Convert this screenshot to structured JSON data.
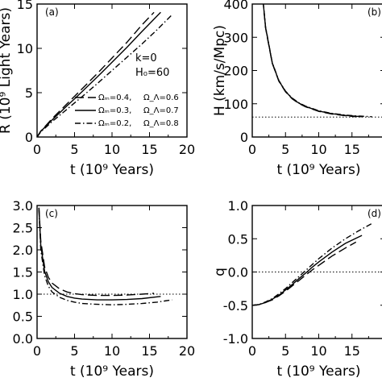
{
  "chart_data": [
    {
      "panel_label": "(a)",
      "type": "line",
      "ylabel": "R (10⁹ Light Years)",
      "xlabel": "t (10⁹ Years)",
      "xlim": [
        0,
        20
      ],
      "ylim": [
        0,
        16
      ],
      "xticks": [
        "0",
        "5",
        "10",
        "15",
        "20"
      ],
      "yticks": [
        "0",
        "5",
        "10",
        "15"
      ],
      "annotations": [
        "k=0",
        "H₀=60"
      ],
      "series": [
        {
          "name": "Ωₘ=0.4, Ω_Λ=0.6",
          "style": "long-dash",
          "x": [
            0,
            0.5,
            1,
            2,
            3,
            4,
            5,
            6,
            8,
            10,
            12,
            14,
            15.6
          ],
          "y": [
            0,
            0.72,
            1.2,
            2.2,
            3.1,
            4.0,
            4.9,
            5.8,
            7.6,
            9.5,
            11.4,
            13.5,
            15.0
          ]
        },
        {
          "name": "Ωₘ=0.3, Ω_Λ=0.7",
          "style": "solid",
          "x": [
            0,
            0.5,
            1,
            2,
            3,
            4,
            5,
            6,
            8,
            10,
            12,
            14,
            16.5
          ],
          "y": [
            0,
            0.68,
            1.13,
            2.05,
            2.9,
            3.75,
            4.6,
            5.45,
            7.2,
            9.0,
            10.8,
            12.7,
            15.0
          ]
        },
        {
          "name": "Ωₘ=0.2, Ω_Λ=0.8",
          "style": "dash-dot",
          "x": [
            0,
            0.5,
            1,
            2,
            3,
            4,
            5,
            6,
            8,
            10,
            12,
            14,
            16,
            18
          ],
          "y": [
            0,
            0.62,
            1.02,
            1.85,
            2.6,
            3.35,
            4.1,
            4.85,
            6.4,
            8.0,
            9.6,
            11.2,
            12.9,
            14.7
          ]
        }
      ]
    },
    {
      "panel_label": "(b)",
      "type": "line",
      "ylabel": "H (km/s/Mpc)",
      "xlabel": "t (10⁹ Years)",
      "xlim": [
        0,
        20
      ],
      "ylim": [
        0,
        400
      ],
      "xticks": [
        "0",
        "5",
        "10",
        "15",
        "2"
      ],
      "yticks": [
        "0",
        "100",
        "200",
        "300",
        "400"
      ],
      "reference_line": 60,
      "series": [
        {
          "name": "Ωₘ=0.4, Ω_Λ=0.6",
          "style": "long-dash",
          "x": [
            1.6,
            2,
            3,
            4,
            5,
            6,
            7,
            8,
            10,
            12,
            14,
            15.6
          ],
          "y": [
            415,
            328,
            222,
            168,
            136,
            115,
            101,
            91,
            77,
            69,
            64,
            61
          ]
        },
        {
          "name": "Ωₘ=0.3, Ω_Λ=0.7",
          "style": "solid",
          "x": [
            1.6,
            2,
            3,
            4,
            5,
            6,
            7,
            8,
            10,
            12,
            14,
            16.5
          ],
          "y": [
            415,
            330,
            223,
            169,
            137,
            116,
            102,
            92,
            78,
            70,
            65,
            61
          ]
        },
        {
          "name": "Ωₘ=0.2, Ω_Λ=0.8",
          "style": "dash-dot",
          "x": [
            1.6,
            2,
            3,
            4,
            5,
            6,
            7,
            8,
            10,
            12,
            14,
            16,
            18
          ],
          "y": [
            415,
            332,
            224,
            170,
            138,
            117,
            103,
            93,
            79,
            71,
            66,
            63,
            61
          ]
        }
      ]
    },
    {
      "panel_label": "(c)",
      "type": "line",
      "ylabel": "",
      "xlabel": "t (10⁹ Years)",
      "xlim": [
        0,
        20
      ],
      "ylim": [
        0,
        3
      ],
      "xticks": [
        "0",
        "5",
        "10",
        "15",
        "20"
      ],
      "yticks": [
        "0.0",
        "0.5",
        "1.0",
        "1.5",
        "2.0",
        "2.5",
        "3.0"
      ],
      "reference_line": 1.0,
      "series": [
        {
          "name": "Ωₘ=0.4, Ω_Λ=0.6",
          "style": "long-dash",
          "x": [
            0.25,
            0.5,
            1,
            1.5,
            2,
            3,
            4,
            5,
            6,
            8,
            10,
            12,
            14,
            15.6
          ],
          "y": [
            2.95,
            2.2,
            1.62,
            1.38,
            1.25,
            1.12,
            1.05,
            1.01,
            0.99,
            0.97,
            0.97,
            0.98,
            1.0,
            1.02
          ]
        },
        {
          "name": "Ωₘ=0.3, Ω_Λ=0.7",
          "style": "solid",
          "x": [
            0.25,
            0.5,
            1,
            1.5,
            2,
            3,
            4,
            5,
            6,
            8,
            10,
            12,
            14,
            16.5
          ],
          "y": [
            2.95,
            2.1,
            1.52,
            1.28,
            1.15,
            1.02,
            0.95,
            0.91,
            0.89,
            0.87,
            0.87,
            0.88,
            0.9,
            0.95
          ]
        },
        {
          "name": "Ωₘ=0.2, Ω_Λ=0.8",
          "style": "dash-dot",
          "x": [
            0.25,
            0.5,
            1,
            1.5,
            2,
            3,
            4,
            5,
            6,
            8,
            10,
            12,
            14,
            16,
            18
          ],
          "y": [
            2.9,
            2.0,
            1.42,
            1.18,
            1.05,
            0.93,
            0.86,
            0.82,
            0.79,
            0.77,
            0.76,
            0.77,
            0.79,
            0.82,
            0.87
          ]
        }
      ]
    },
    {
      "panel_label": "(d)",
      "type": "line",
      "ylabel": "q",
      "xlabel": "t (10⁹ Years)",
      "xlim": [
        0,
        20
      ],
      "ylim": [
        -1.0,
        1.0
      ],
      "xticks": [
        "0",
        "5",
        "10",
        "15",
        "2"
      ],
      "yticks": [
        "-1.0",
        "-0.5",
        "0.0",
        "0.5",
        "1.0"
      ],
      "reference_line": 0.0,
      "series": [
        {
          "name": "Ωₘ=0.4, Ω_Λ=0.6",
          "style": "long-dash",
          "x": [
            0,
            1,
            2,
            3,
            4,
            5,
            6,
            7,
            8,
            9,
            10,
            12,
            14,
            15.6
          ],
          "y": [
            -0.5,
            -0.49,
            -0.46,
            -0.42,
            -0.36,
            -0.29,
            -0.21,
            -0.13,
            -0.05,
            0.03,
            0.1,
            0.24,
            0.36,
            0.45
          ]
        },
        {
          "name": "Ωₘ=0.3, Ω_Λ=0.7",
          "style": "solid",
          "x": [
            0,
            1,
            2,
            3,
            4,
            5,
            6,
            7,
            8,
            9,
            10,
            12,
            14,
            16.5
          ],
          "y": [
            -0.5,
            -0.49,
            -0.46,
            -0.41,
            -0.35,
            -0.27,
            -0.19,
            -0.1,
            -0.02,
            0.07,
            0.15,
            0.3,
            0.43,
            0.55
          ]
        },
        {
          "name": "Ωₘ=0.2, Ω_Λ=0.8",
          "style": "dash-dot",
          "x": [
            0,
            1,
            2,
            3,
            4,
            5,
            6,
            7,
            8,
            9,
            10,
            12,
            14,
            16,
            18
          ],
          "y": [
            -0.5,
            -0.49,
            -0.45,
            -0.4,
            -0.33,
            -0.25,
            -0.16,
            -0.07,
            0.02,
            0.11,
            0.2,
            0.36,
            0.5,
            0.62,
            0.73
          ]
        }
      ]
    }
  ],
  "legend_labels": {
    "om": [
      "Ωₘ=0.4,",
      "Ωₘ=0.3,",
      "Ωₘ=0.2,"
    ],
    "ol": [
      "Ω_Λ=0.6",
      "Ω_Λ=0.7",
      "Ω_Λ=0.8"
    ]
  }
}
